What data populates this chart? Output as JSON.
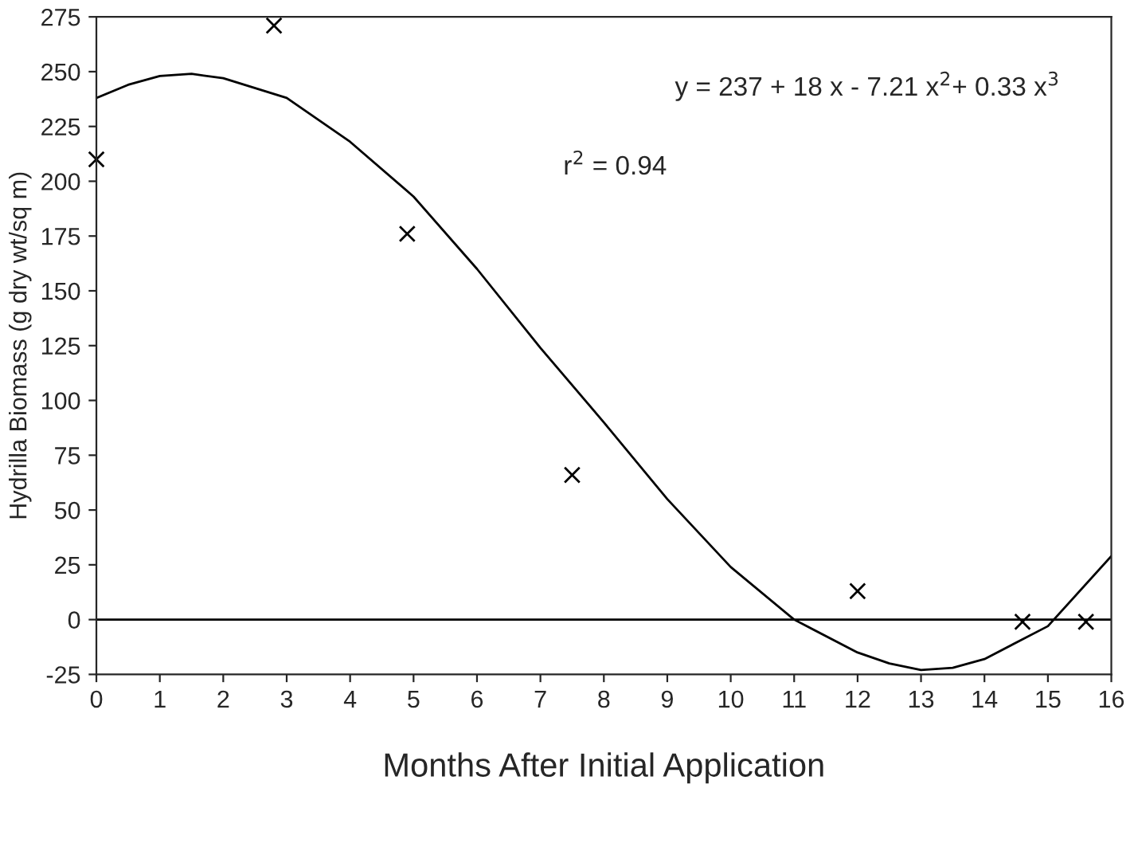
{
  "chart_data": {
    "type": "scatter",
    "xlabel": "Months After Initial Application",
    "ylabel": "Hydrilla Biomass (g dry wt/sq m)",
    "series": [
      {
        "color": "#000000",
        "marker": "cross",
        "x": [
          0,
          2.8,
          4.9,
          7.5,
          12,
          14.6,
          15.6
        ],
        "values": [
          210,
          271,
          176,
          66,
          13,
          -1,
          -1
        ]
      },
      {
        "type": "line",
        "color": "#000000",
        "marker": "none",
        "x": [
          0,
          0.5,
          1,
          1.5,
          2,
          3,
          4,
          5,
          6,
          7,
          8,
          9,
          10,
          11,
          12,
          12.5,
          13,
          13.5,
          14,
          15,
          16
        ],
        "values": [
          238,
          244,
          248,
          249,
          247,
          238,
          218,
          193,
          160,
          124,
          90,
          55,
          24,
          0,
          -15,
          -20,
          -23,
          -22,
          -18,
          -3,
          29
        ]
      }
    ],
    "xlim": [
      0,
      16
    ],
    "xticks": [
      0,
      1,
      2,
      3,
      4,
      5,
      6,
      7,
      8,
      9,
      10,
      11,
      12,
      13,
      14,
      15,
      16
    ],
    "ylim": [
      -25,
      275
    ],
    "yticks": [
      -25,
      0,
      25,
      50,
      75,
      100,
      125,
      150,
      175,
      200,
      225,
      250,
      275
    ],
    "ref_lines": [
      {
        "axis": "y",
        "value": 0,
        "color": "#000000"
      }
    ],
    "annotations": [
      {
        "text": "y = 237 + 18 x - 7.21 x$^{2}$+ 0.33 x$^{3}$"
      },
      {
        "text": "r$^{2}$ = 0.94"
      }
    ],
    "grid": false,
    "legend": false
  }
}
